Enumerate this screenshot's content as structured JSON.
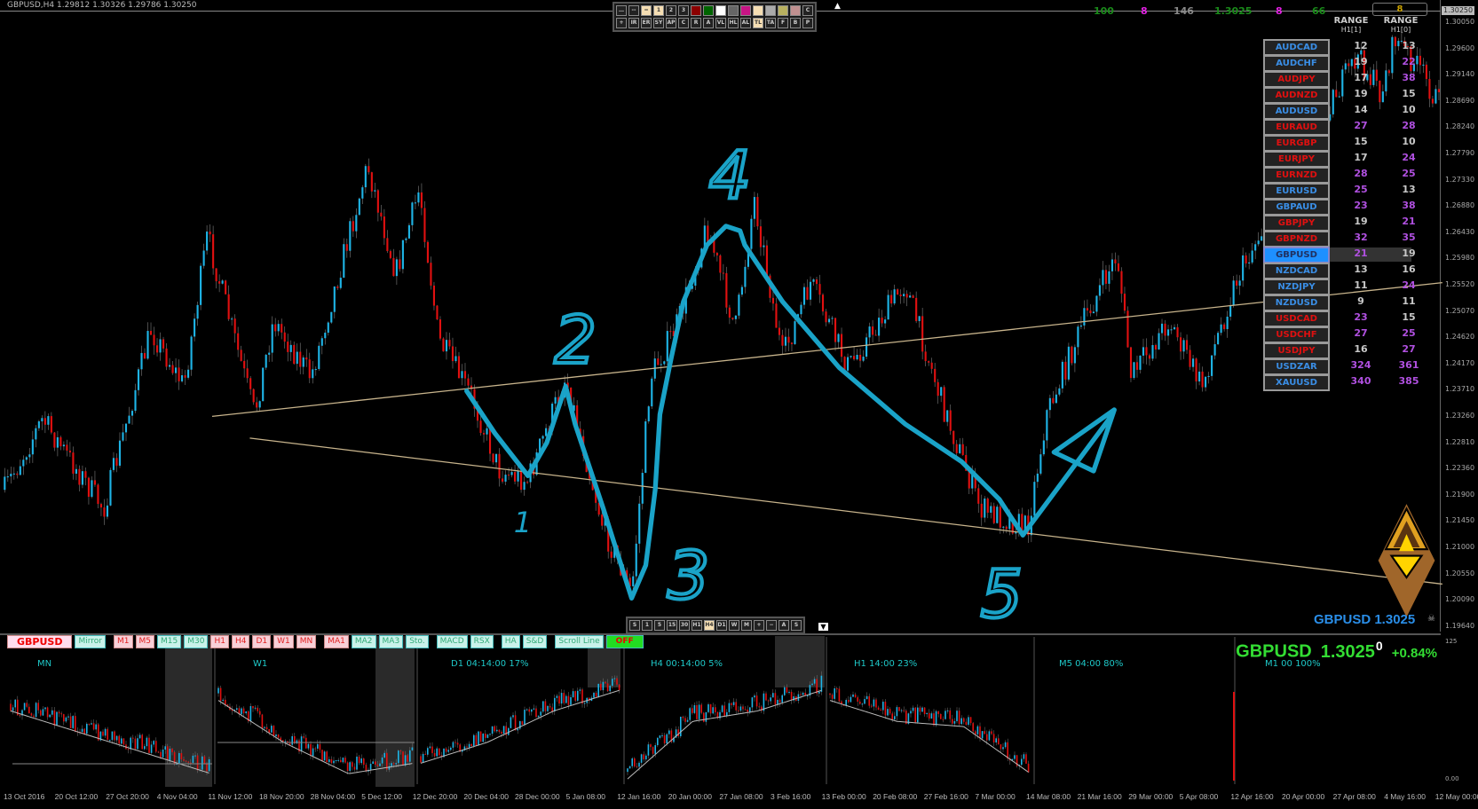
{
  "window": {
    "title": "GBPUSD,H4  1.29812 1.30326 1.29786 1.30250"
  },
  "drawing_toolbar": {
    "row1": [
      {
        "label": "…",
        "icon": "dotted-line-icon"
      },
      {
        "label": "--",
        "icon": "dashed-line-icon"
      },
      {
        "label": "═",
        "icon": "solid-line-icon",
        "active": true
      },
      {
        "label": "1",
        "active": true
      },
      {
        "label": "2"
      },
      {
        "label": "3"
      },
      {
        "label": "",
        "color": "#8b0000"
      },
      {
        "label": "",
        "color": "#006400"
      },
      {
        "label": "",
        "color": "#ffffff"
      },
      {
        "label": "",
        "color": "#666666"
      },
      {
        "label": "",
        "color": "#c71585"
      },
      {
        "label": "",
        "color": "#f5deb3"
      },
      {
        "label": "",
        "color": "#aaaaaa"
      },
      {
        "label": "",
        "color": "#b8b060"
      },
      {
        "label": "",
        "color": "#c09090"
      },
      {
        "label": "C"
      }
    ],
    "row2": [
      {
        "label": "+",
        "icon": "crosshair-icon"
      },
      {
        "label": "IR"
      },
      {
        "label": "ER"
      },
      {
        "label": "SY"
      },
      {
        "label": "AP"
      },
      {
        "label": "C"
      },
      {
        "label": "R"
      },
      {
        "label": "A"
      },
      {
        "label": "VL"
      },
      {
        "label": "HL"
      },
      {
        "label": "AL"
      },
      {
        "label": "TL",
        "active": true
      },
      {
        "label": "TA"
      },
      {
        "label": "F"
      },
      {
        "label": "B"
      },
      {
        "label": "P"
      }
    ]
  },
  "header_stats": [
    {
      "text": "100",
      "color": "#1a8a1a"
    },
    {
      "text": "8",
      "color": "#e020e0"
    },
    {
      "text": "146",
      "color": "#888888"
    },
    {
      "text": "1.3025",
      "color": "#1a8a1a"
    },
    {
      "text": "8",
      "color": "#e020e0"
    },
    {
      "text": "66",
      "color": "#1a8a1a"
    }
  ],
  "header_box": {
    "text": "8",
    "color": "#c8a000"
  },
  "range_table": {
    "col1_title": "RANGE",
    "col1_sub": "H1[1]",
    "col2_title": "RANGE",
    "col2_sub": "H1[0]",
    "rows": [
      {
        "symbol": "AUDCAD",
        "dir": "up",
        "r1": "12",
        "r2": "13"
      },
      {
        "symbol": "AUDCHF",
        "dir": "up",
        "r1": "19",
        "r2": "22"
      },
      {
        "symbol": "AUDJPY",
        "dir": "down",
        "r1": "17",
        "r2": "38"
      },
      {
        "symbol": "AUDNZD",
        "dir": "down",
        "r1": "19",
        "r2": "15"
      },
      {
        "symbol": "AUDUSD",
        "dir": "up",
        "r1": "14",
        "r2": "10"
      },
      {
        "symbol": "EURAUD",
        "dir": "down",
        "r1": "27",
        "r2": "28"
      },
      {
        "symbol": "EURGBP",
        "dir": "down",
        "r1": "15",
        "r2": "10"
      },
      {
        "symbol": "EURJPY",
        "dir": "down",
        "r1": "17",
        "r2": "24"
      },
      {
        "symbol": "EURNZD",
        "dir": "down",
        "r1": "28",
        "r2": "25"
      },
      {
        "symbol": "EURUSD",
        "dir": "up",
        "r1": "25",
        "r2": "13"
      },
      {
        "symbol": "GBPAUD",
        "dir": "up",
        "r1": "23",
        "r2": "38"
      },
      {
        "symbol": "GBPJPY",
        "dir": "down",
        "r1": "19",
        "r2": "21"
      },
      {
        "symbol": "GBPNZD",
        "dir": "down",
        "r1": "32",
        "r2": "35"
      },
      {
        "symbol": "GBPUSD",
        "dir": "up",
        "r1": "21",
        "r2": "19",
        "selected": true
      },
      {
        "symbol": "NZDCAD",
        "dir": "up",
        "r1": "13",
        "r2": "16"
      },
      {
        "symbol": "NZDJPY",
        "dir": "up",
        "r1": "11",
        "r2": "24"
      },
      {
        "symbol": "NZDUSD",
        "dir": "up",
        "r1": "9",
        "r2": "11"
      },
      {
        "symbol": "USDCAD",
        "dir": "down",
        "r1": "23",
        "r2": "15"
      },
      {
        "symbol": "USDCHF",
        "dir": "down",
        "r1": "27",
        "r2": "25"
      },
      {
        "symbol": "USDJPY",
        "dir": "down",
        "r1": "16",
        "r2": "27"
      },
      {
        "symbol": "USDZAR",
        "dir": "up",
        "r1": "324",
        "r2": "361"
      },
      {
        "symbol": "XAUUSD",
        "dir": "up",
        "r1": "340",
        "r2": "385"
      }
    ]
  },
  "logo_quote": "GBPUSD 1.3025",
  "price_axis": {
    "current": "1.30250",
    "labels": [
      "1.30050",
      "1.29600",
      "1.29140",
      "1.28690",
      "1.28240",
      "1.27790",
      "1.27330",
      "1.26880",
      "1.26430",
      "1.25980",
      "1.25520",
      "1.25070",
      "1.24620",
      "1.24170",
      "1.23710",
      "1.23260",
      "1.22810",
      "1.22360",
      "1.21900",
      "1.21450",
      "1.21000",
      "1.20550",
      "1.20090",
      "1.19640"
    ]
  },
  "wave_labels": [
    "1",
    "2",
    "3",
    "4",
    "5"
  ],
  "timeframe_toolbar": {
    "buttons": [
      "S",
      "1",
      "5",
      "15",
      "30",
      "H1",
      "H4",
      "D1",
      "W",
      "M",
      "+",
      "−",
      "A",
      "S"
    ],
    "active": "H4"
  },
  "lower_panel": {
    "symbol": "GBPUSD",
    "buttons": [
      {
        "label": "Mirror"
      },
      {
        "label": "M1",
        "red": true
      },
      {
        "label": "M5",
        "red": true
      },
      {
        "label": "M15"
      },
      {
        "label": "M30"
      },
      {
        "label": "H1",
        "red": true
      },
      {
        "label": "H4",
        "red": true
      },
      {
        "label": "D1",
        "red": true
      },
      {
        "label": "W1",
        "red": true
      },
      {
        "label": "MN",
        "red": true
      },
      {
        "label": "MA1",
        "red": true
      },
      {
        "label": "MA2"
      },
      {
        "label": "MA3"
      },
      {
        "label": "Sto."
      },
      {
        "label": "MACD"
      },
      {
        "label": "RSX"
      },
      {
        "label": "HA"
      },
      {
        "label": "S&D"
      },
      {
        "label": "Scroll Line"
      }
    ],
    "toggle": "OFF",
    "panels": [
      "MN",
      "W1",
      "D1   04:14:00   17%",
      "H4   00:14:00   5%",
      "H1   14:00   23%",
      "M5   04:00   80%",
      "M1   00   100%"
    ],
    "quote": {
      "symbol": "GBPUSD",
      "price": "1.3025",
      "last_digit": "0",
      "change": "+0.84%"
    },
    "axis_top": "125",
    "axis_bottom": "0.00"
  },
  "time_axis": [
    "13 Oct 2016",
    "20 Oct 12:00",
    "27 Oct 20:00",
    "4 Nov 04:00",
    "11 Nov 12:00",
    "18 Nov 20:00",
    "28 Nov 04:00",
    "5 Dec 12:00",
    "12 Dec 20:00",
    "20 Dec 04:00",
    "28 Dec 00:00",
    "5 Jan 08:00",
    "12 Jan 16:00",
    "20 Jan 00:00",
    "27 Jan 08:00",
    "3 Feb 16:00",
    "13 Feb 00:00",
    "20 Feb 08:00",
    "27 Feb 16:00",
    "7 Mar 00:00",
    "14 Mar 08:00",
    "21 Mar 16:00",
    "29 Mar 00:00",
    "5 Apr 08:00",
    "12 Apr 16:00",
    "20 Apr 00:00",
    "27 Apr 08:00",
    "4 May 16:00",
    "12 May 00:00"
  ],
  "colors": {
    "bull": "#1eb4e6",
    "bear": "#e01010",
    "trendline": "#c8b48c",
    "annotation": "#1aa3c8",
    "up_symbol": "#3a8ee6",
    "down_symbol": "#e01010",
    "high_range": "#b050e0",
    "low_range": "#c8c8c8"
  }
}
